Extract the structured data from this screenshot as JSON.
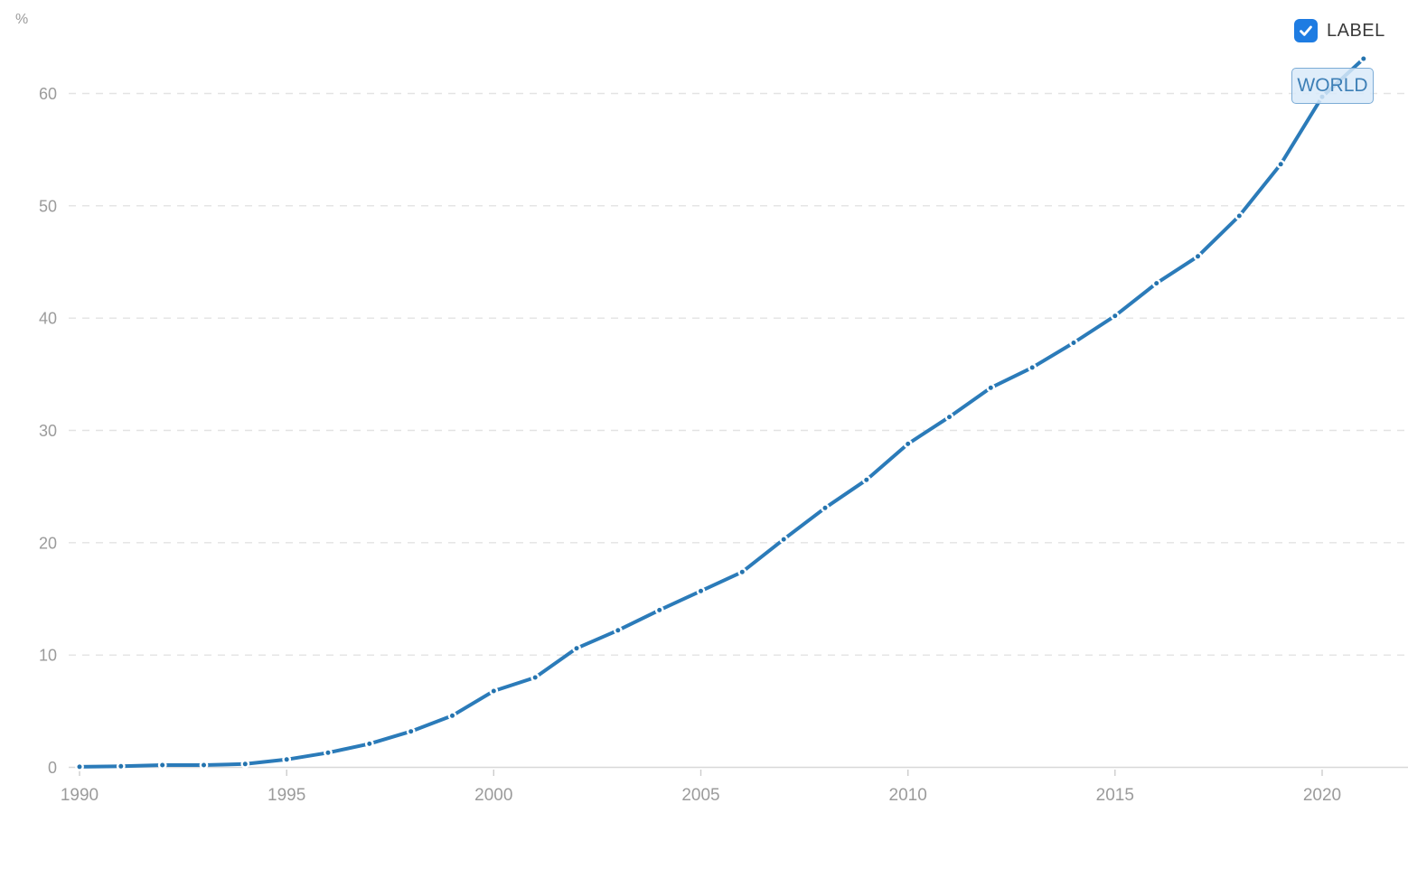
{
  "chart": {
    "unit_label": "%"
  },
  "legend": {
    "checkbox_label": "LABEL",
    "checkbox_checked": true,
    "series_label": "WORLD"
  },
  "colors": {
    "line": "#2b7bb9",
    "marker": "#2473ae",
    "checkbox_blue": "#1e7ce2",
    "badge_border": "#7cacd6",
    "badge_text": "#3d7fb6",
    "axis_text": "#9b9b9b",
    "gridline": "#e3e3e3",
    "axis_line": "#d8d8d8",
    "tick": "#cccccc",
    "label_text": "#3a3a3a"
  },
  "chart_data": {
    "type": "line",
    "title": "",
    "xlabel": "",
    "ylabel": "%",
    "grid": "horizontal-dashed",
    "legend_position": "top-right",
    "xlim": [
      1990,
      2021
    ],
    "ylim": [
      0,
      65
    ],
    "y_ticks": [
      0,
      10,
      20,
      30,
      40,
      50,
      60
    ],
    "x_tick_labels": [
      1990,
      1995,
      2000,
      2005,
      2010,
      2015,
      2020
    ],
    "series": [
      {
        "name": "WORLD",
        "x": [
          1990,
          1991,
          1992,
          1993,
          1994,
          1995,
          1996,
          1997,
          1998,
          1999,
          2000,
          2001,
          2002,
          2003,
          2004,
          2005,
          2006,
          2007,
          2008,
          2009,
          2010,
          2011,
          2012,
          2013,
          2014,
          2015,
          2016,
          2017,
          2018,
          2019,
          2020,
          2021
        ],
        "values": [
          0.05,
          0.1,
          0.2,
          0.2,
          0.3,
          0.7,
          1.3,
          2.1,
          3.2,
          4.6,
          6.8,
          8.0,
          10.6,
          12.2,
          14.0,
          15.7,
          17.4,
          20.3,
          23.1,
          25.6,
          28.8,
          31.2,
          33.8,
          35.6,
          37.8,
          40.2,
          43.1,
          45.5,
          49.1,
          53.7,
          59.7,
          63.1
        ]
      }
    ]
  }
}
